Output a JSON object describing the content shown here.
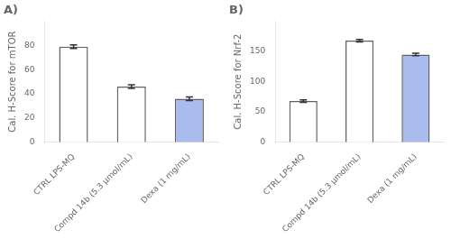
{
  "chart_data": [
    {
      "type": "bar",
      "title": "A)",
      "ylabel": "Cal. H-Score for mTOR",
      "categories": [
        "CTRL LPS-MQ",
        "Compd 14b (5.3 μmol/mL)",
        "Dexa (1 mg/mL)"
      ],
      "values": [
        79,
        46,
        36
      ],
      "errors": [
        1.5,
        1.5,
        1.5
      ],
      "colors": [
        "white",
        "white",
        "#aabbee"
      ],
      "ylim": [
        0,
        100
      ],
      "yticks": [
        0,
        20,
        40,
        60,
        80
      ],
      "grid": false
    },
    {
      "type": "bar",
      "title": "B)",
      "ylabel": "Cal. H-Score for Nrf-2",
      "categories": [
        "CTRL LPS-MQ",
        "Compd 14b (5.3 μmol/mL)",
        "Dexa (1 mg/mL)"
      ],
      "values": [
        68,
        168,
        145
      ],
      "errors": [
        2.0,
        2.0,
        2.0
      ],
      "colors": [
        "white",
        "white",
        "#aabbee"
      ],
      "ylim": [
        0,
        200
      ],
      "yticks": [
        0,
        50,
        100,
        150
      ],
      "grid": false
    }
  ]
}
